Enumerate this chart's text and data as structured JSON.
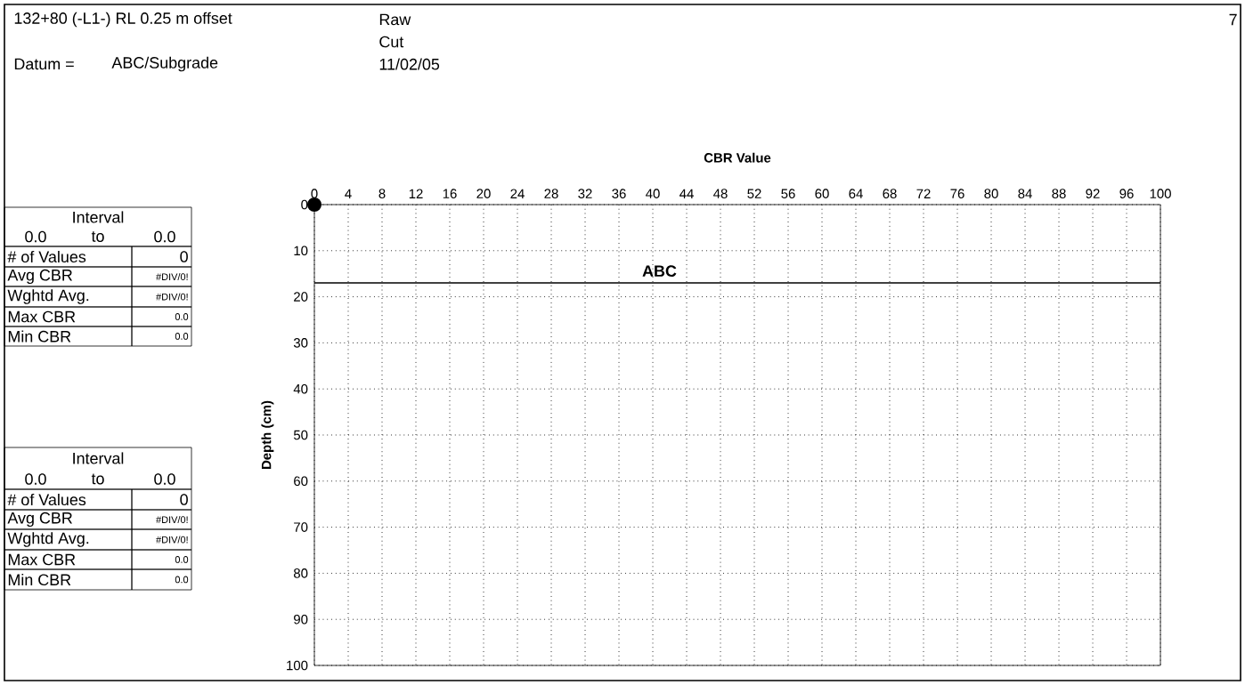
{
  "chart_data": {
    "type": "scatter",
    "xlabel": "CBR Value",
    "ylabel": "Depth (cm)",
    "x": [
      0
    ],
    "values": [
      0
    ],
    "color": "#000000",
    "xlim": [
      0,
      100
    ],
    "xticks": [
      0,
      4,
      8,
      12,
      16,
      20,
      24,
      28,
      32,
      36,
      40,
      44,
      48,
      52,
      56,
      60,
      64,
      68,
      72,
      76,
      80,
      84,
      88,
      92,
      96,
      100
    ],
    "ylim": [
      100,
      0
    ],
    "yticks": [
      0,
      10,
      20,
      30,
      40,
      50,
      60,
      70,
      80,
      90,
      100
    ],
    "grid": true,
    "ref_lines": [
      {
        "axis": "y",
        "value": 17,
        "label": "ABC"
      }
    ],
    "annotations": [
      "132+80 (-L1-) RL 0.25 m offset",
      "Raw",
      "Cut",
      "Datum =",
      "ABC/Subgrade",
      "11/02/05",
      "7",
      "Interval",
      "0.0",
      "to",
      "0.0",
      "# of Values",
      "0",
      "Avg CBR",
      "#DIV/0!",
      "Wghtd Avg.",
      "#DIV/0!",
      "Max CBR",
      "0.0",
      "Min CBR",
      "0.0",
      "Interval",
      "0.0",
      "to",
      "0.0",
      "# of Values",
      "0",
      "Avg CBR",
      "#DIV/0!",
      "Wghtd Avg.",
      "#DIV/0!",
      "Max CBR",
      "0.0",
      "Min CBR",
      "0.0"
    ]
  }
}
